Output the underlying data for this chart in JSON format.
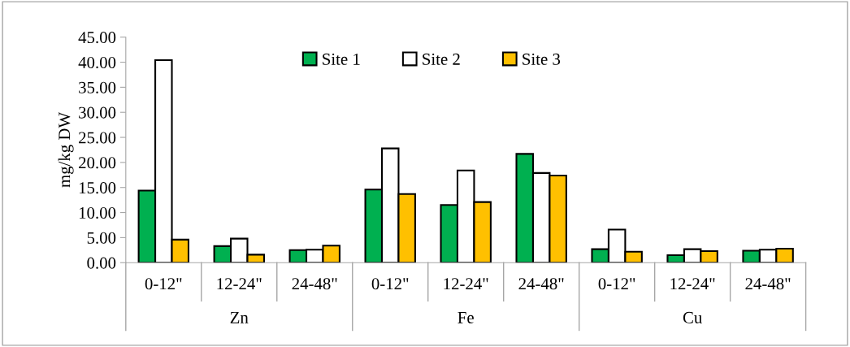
{
  "chart_data": {
    "type": "bar",
    "ylabel": "mg/kg DW",
    "categories": [
      "0-12\"",
      "12-24\"",
      "24-48\"",
      "0-12\"",
      "12-24\"",
      "24-48\"",
      "0-12\"",
      "12-24\"",
      "24-48\""
    ],
    "annotations": [
      "Zn",
      "Fe",
      "Cu"
    ],
    "series": [
      {
        "name": "Site 1",
        "color": "#00b050",
        "values": [
          14.4,
          3.3,
          2.5,
          14.6,
          11.5,
          21.7,
          2.7,
          1.5,
          2.4
        ]
      },
      {
        "name": "Site 2",
        "color": "#ffffff",
        "values": [
          40.4,
          4.8,
          2.6,
          22.8,
          18.4,
          17.9,
          6.6,
          2.7,
          2.6
        ]
      },
      {
        "name": "Site 3",
        "color": "#ffc000",
        "values": [
          4.6,
          1.6,
          3.4,
          13.7,
          12.1,
          17.4,
          2.2,
          2.3,
          2.8
        ]
      }
    ],
    "ylim": [
      0,
      45
    ],
    "yticks": [
      {
        "value": 0,
        "label": "0.00"
      },
      {
        "value": 5,
        "label": "5.00"
      },
      {
        "value": 10,
        "label": "10.00"
      },
      {
        "value": 15,
        "label": "15.00"
      },
      {
        "value": 20,
        "label": "20.00"
      },
      {
        "value": 25,
        "label": "25.00"
      },
      {
        "value": 30,
        "label": "30.00"
      },
      {
        "value": 35,
        "label": "35.00"
      },
      {
        "value": 40,
        "label": "40.00"
      },
      {
        "value": 45,
        "label": "45.00"
      }
    ],
    "grid": false,
    "legend": "top"
  }
}
